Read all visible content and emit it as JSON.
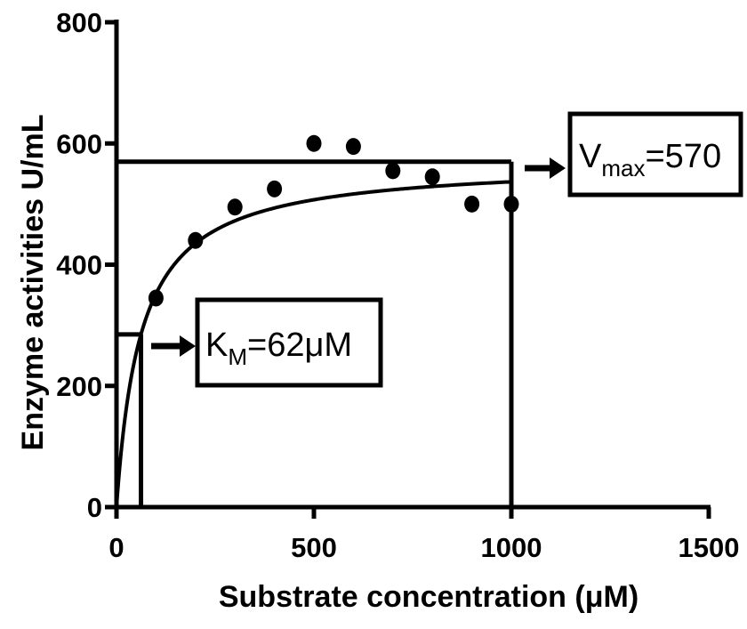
{
  "chart_data": {
    "type": "scatter",
    "xlabel": "Substrate concentration (μM)",
    "ylabel": "Enzyme activities U/mL",
    "xlim": [
      0,
      1500
    ],
    "ylim": [
      0,
      800
    ],
    "x_ticks": [
      "0",
      "500",
      "1000",
      "1500"
    ],
    "y_ticks": [
      "0",
      "200",
      "400",
      "600",
      "800"
    ],
    "points": {
      "x": [
        100,
        200,
        300,
        400,
        500,
        600,
        700,
        800,
        900,
        1000
      ],
      "y": [
        345,
        440,
        495,
        525,
        600,
        595,
        555,
        545,
        500,
        500
      ]
    },
    "fit": {
      "model": "Michaelis-Menten",
      "vmax": 570,
      "km": 62,
      "x_max": 1000
    },
    "annotations": {
      "vmax": {
        "prefix": "V",
        "subscript": "max",
        "suffix": "=570"
      },
      "km": {
        "prefix": "K",
        "subscript": "M",
        "suffix": "=62μM"
      }
    },
    "grid": false,
    "legend": "none"
  }
}
